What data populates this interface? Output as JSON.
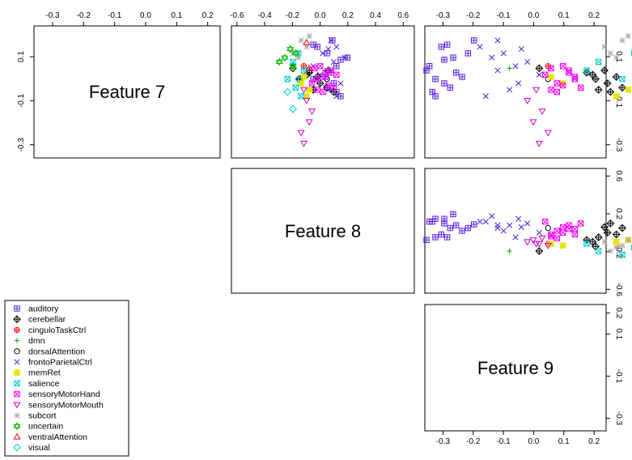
{
  "chart_data": {
    "type": "scatter",
    "features": [
      "Feature 7",
      "Feature 8",
      "Feature 9"
    ],
    "axis_ticks": {
      "f7": [
        "-0.3",
        "-0.2",
        "-0.1",
        "0.0",
        "0.1",
        "0.2"
      ],
      "f7_left": [
        "0.1",
        "-0.1",
        "-0.3"
      ],
      "f8": [
        "-0.6",
        "-0.4",
        "-0.2",
        "0.0",
        "0.2",
        "0.4",
        "0.6"
      ],
      "f8_right": [
        "0.6",
        "0.2",
        "-0.2",
        "-0.6"
      ],
      "f9": [
        "-0.3",
        "-0.2",
        "-0.1",
        "0.0",
        "0.1",
        "0.2"
      ],
      "f9_right_top": [
        "0.1",
        "-0.1",
        "-0.3"
      ],
      "f9_right_bottom": [
        "0.2",
        "0.1",
        "-0.1",
        "-0.3"
      ],
      "f9_bottom": [
        "-0.3",
        "-0.2",
        "-0.1",
        "0.0",
        "0.1",
        "0.2"
      ]
    },
    "ranges": {
      "f7": [
        -0.36,
        0.24
      ],
      "f8": [
        -0.64,
        0.68
      ],
      "f9": [
        -0.36,
        0.24
      ]
    },
    "legend": {
      "placement": "bottom-left"
    },
    "series": [
      {
        "name": "auditory",
        "color": "#5a20e0",
        "marker": "square-plus",
        "points": [
          [
            -0.04,
            0.05,
            -0.28
          ],
          [
            -0.02,
            0.1,
            -0.3
          ],
          [
            0.0,
            -0.05,
            -0.33
          ],
          [
            0.03,
            0.08,
            -0.26
          ],
          [
            0.06,
            0.12,
            -0.35
          ],
          [
            0.09,
            0.15,
            -0.3
          ],
          [
            0.12,
            0.05,
            -0.22
          ],
          [
            0.15,
            -0.02,
            -0.31
          ],
          [
            -0.06,
            0.12,
            -0.34
          ],
          [
            0.01,
            0.02,
            -0.24
          ],
          [
            0.18,
            0.09,
            -0.2
          ],
          [
            -0.08,
            0.15,
            -0.33
          ],
          [
            0.04,
            -0.08,
            -0.36
          ],
          [
            0.1,
            0.2,
            -0.27
          ],
          [
            0.16,
            -0.05,
            -0.29
          ]
        ]
      },
      {
        "name": "cerebellar",
        "color": "#000000",
        "marker": "diamond-plus",
        "points": [
          [
            -0.05,
            -0.05,
            0.22
          ],
          [
            -0.02,
            0.0,
            0.25
          ],
          [
            0.02,
            -0.1,
            0.2
          ],
          [
            0.05,
            -0.2,
            0.02
          ],
          [
            -0.04,
            0.05,
            0.3
          ],
          [
            0.01,
            -0.02,
            0.28
          ],
          [
            0.03,
            -0.08,
            0.18
          ],
          [
            -0.06,
            0.1,
            0.26
          ],
          [
            0.0,
            -0.15,
            0.21
          ],
          [
            0.04,
            0.06,
            0.24
          ]
        ]
      },
      {
        "name": "cinguloTaskCtrl",
        "color": "#ff0000",
        "marker": "circle-plus",
        "points": [
          [
            0.06,
            -0.12,
            0.05
          ]
        ]
      },
      {
        "name": "dmn",
        "color": "#00aa00",
        "marker": "plus",
        "points": [
          [
            0.05,
            -0.2,
            -0.08
          ]
        ]
      },
      {
        "name": "dorsalAttention",
        "color": "#000000",
        "marker": "circle",
        "points": [
          [
            0.0,
            0.05,
            0.05
          ]
        ]
      },
      {
        "name": "frontoParietalCtrl",
        "color": "#4a1ee0",
        "marker": "x",
        "points": [
          [
            -0.02,
            0.15,
            -0.05
          ],
          [
            0.04,
            0.05,
            -0.12
          ],
          [
            0.08,
            0.1,
            -0.02
          ],
          [
            0.12,
            0.02,
            -0.1
          ],
          [
            0.15,
            0.12,
            -0.18
          ],
          [
            -0.05,
            0.08,
            -0.08
          ],
          [
            0.1,
            0.18,
            -0.14
          ],
          [
            0.02,
            0.0,
            0.02
          ],
          [
            0.06,
            -0.05,
            -0.06
          ],
          [
            0.14,
            0.06,
            -0.04
          ],
          [
            0.18,
            0.08,
            -0.12
          ],
          [
            -0.08,
            0.12,
            -0.16
          ]
        ]
      },
      {
        "name": "memRet",
        "color": "#e6e600",
        "marker": "square",
        "points": [
          [
            -0.08,
            -0.1,
            0.28
          ],
          [
            -0.05,
            -0.08,
            0.32
          ],
          [
            -0.02,
            -0.14,
            0.1
          ],
          [
            0.01,
            -0.12,
            0.06
          ]
        ]
      },
      {
        "name": "salience",
        "color": "#00cccc",
        "marker": "square-x",
        "points": [
          [
            -0.08,
            -0.14,
            0.42
          ],
          [
            -0.04,
            -0.18,
            0.38
          ],
          [
            0.0,
            -0.24,
            0.3
          ],
          [
            0.04,
            -0.12,
            0.18
          ],
          [
            0.08,
            -0.2,
            0.22
          ],
          [
            0.12,
            -0.16,
            0.34
          ]
        ]
      },
      {
        "name": "sensoryMotorHand",
        "color": "#ff00ff",
        "marker": "square-x",
        "points": [
          [
            -0.06,
            0.02,
            0.08
          ],
          [
            -0.03,
            0.06,
            0.1
          ],
          [
            0.0,
            -0.02,
            0.14
          ],
          [
            0.03,
            0.04,
            0.12
          ],
          [
            0.05,
            -0.04,
            0.06
          ],
          [
            -0.04,
            0.1,
            0.16
          ],
          [
            0.02,
            0.12,
            0.04
          ],
          [
            0.06,
            0.0,
            0.1
          ],
          [
            -0.02,
            -0.06,
            0.08
          ],
          [
            0.04,
            0.08,
            0.12
          ],
          [
            -0.05,
            -0.02,
            0.06
          ],
          [
            0.01,
            0.04,
            0.14
          ]
        ]
      },
      {
        "name": "sensoryMotorMouth",
        "color": "#cc00cc",
        "marker": "triangle-down",
        "points": [
          [
            -0.3,
            -0.12,
            0.02
          ],
          [
            -0.2,
            -0.08,
            0.0
          ],
          [
            -0.1,
            -0.1,
            -0.02
          ],
          [
            -0.25,
            -0.14,
            0.05
          ],
          [
            -0.15,
            -0.06,
            0.03
          ],
          [
            -0.05,
            -0.12,
            0.01
          ]
        ]
      },
      {
        "name": "subcort",
        "color": "#aaaaaa",
        "marker": "star",
        "points": [
          [
            0.1,
            -0.16,
            0.28
          ],
          [
            0.15,
            -0.1,
            0.24
          ],
          [
            0.18,
            -0.14,
            0.3
          ],
          [
            0.2,
            -0.08,
            0.32
          ],
          [
            0.12,
            -0.2,
            0.26
          ]
        ]
      },
      {
        "name": "uncertain",
        "color": "#00bb00",
        "marker": "star-of-david",
        "points": [
          [
            0.06,
            -0.2,
            0.55
          ],
          [
            0.1,
            -0.26,
            0.45
          ],
          [
            0.14,
            -0.22,
            0.38
          ],
          [
            0.08,
            -0.3,
            0.5
          ],
          [
            0.12,
            -0.18,
            0.42
          ]
        ]
      },
      {
        "name": "ventralAttention",
        "color": "#ff0000",
        "marker": "triangle-up",
        "points": [
          [
            0.05,
            -0.08,
            0.45
          ],
          [
            0.17,
            -0.1,
            0.4
          ]
        ]
      },
      {
        "name": "visual",
        "color": "#00cccc",
        "marker": "diamond",
        "points": [
          [
            -0.14,
            -0.2,
            0.42
          ],
          [
            -0.06,
            -0.24,
            0.46
          ],
          [
            0.0,
            -0.16,
            0.36
          ]
        ]
      }
    ]
  }
}
